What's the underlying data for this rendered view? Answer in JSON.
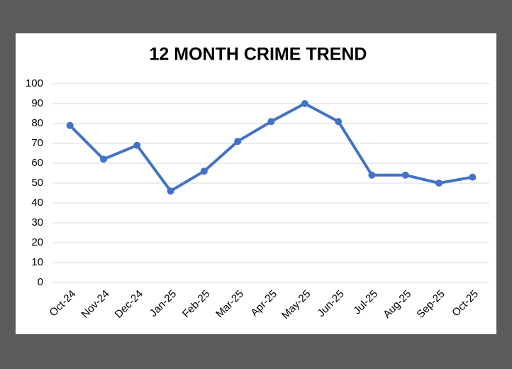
{
  "chart_data": {
    "type": "line",
    "title": "12 MONTH CRIME TREND",
    "categories": [
      "Oct-24",
      "Nov-24",
      "Dec-24",
      "Jan-25",
      "Feb-25",
      "Mar-25",
      "Apr-25",
      "May-25",
      "Jun-25",
      "Jul-25",
      "Aug-25",
      "Sep-25",
      "Oct-25"
    ],
    "values": [
      79,
      62,
      69,
      46,
      56,
      71,
      81,
      90,
      81,
      54,
      54,
      50,
      53
    ],
    "color": "#4472c4",
    "ylim": [
      0,
      100
    ],
    "yticks": [
      0,
      10,
      20,
      30,
      40,
      50,
      60,
      70,
      80,
      90,
      100
    ],
    "grid": true
  }
}
